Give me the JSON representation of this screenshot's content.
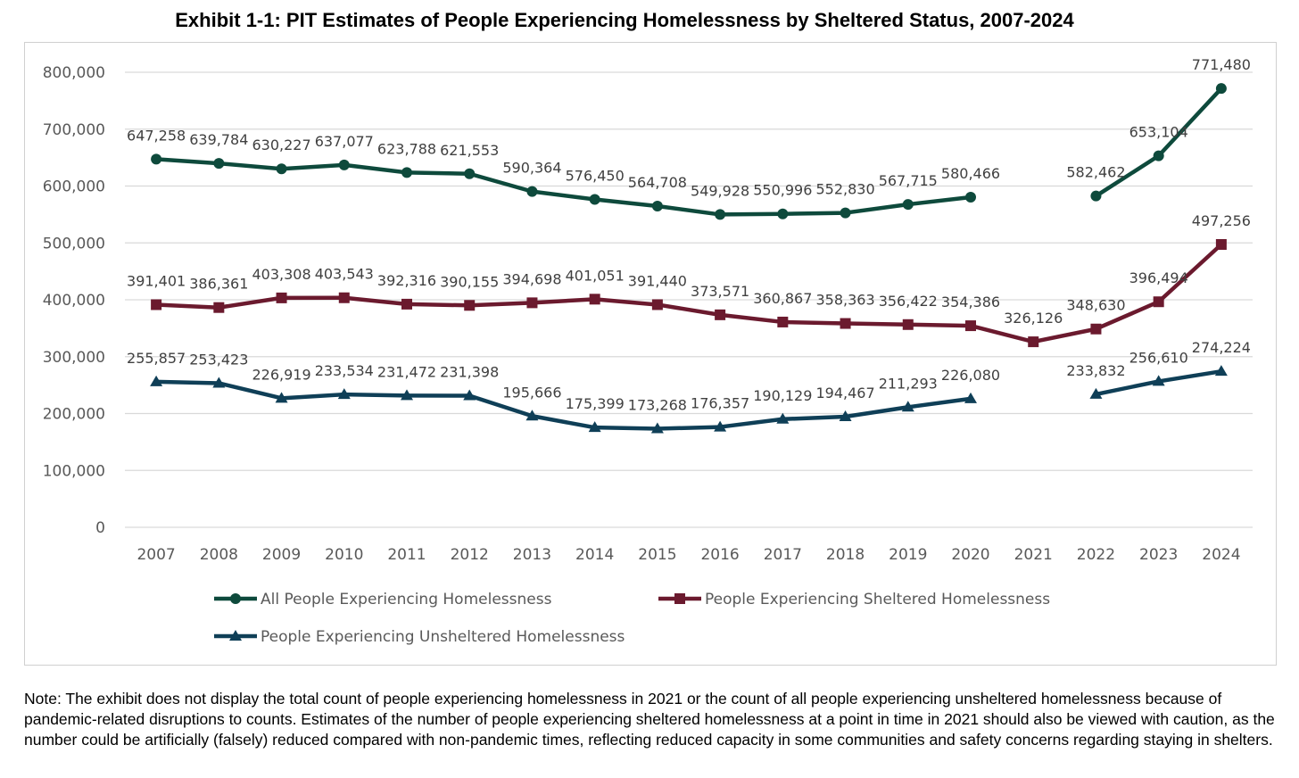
{
  "title": "Exhibit 1-1: PIT Estimates of People Experiencing Homelessness by Sheltered Status, 2007-2024",
  "note": "Note: The exhibit does not display the total count of people experiencing homelessness in 2021 or the count of all people experiencing unsheltered homelessness because of pandemic-related disruptions to counts. Estimates of the number of people experiencing sheltered homelessness at a point in time in 2021 should also be viewed with caution, as the number could be artificially (falsely) reduced compared with non-pandemic times, reflecting reduced capacity in some communities and safety concerns regarding staying in shelters.",
  "chart_data": {
    "type": "line",
    "x": [
      2007,
      2008,
      2009,
      2010,
      2011,
      2012,
      2013,
      2014,
      2015,
      2016,
      2017,
      2018,
      2019,
      2020,
      2021,
      2022,
      2023,
      2024
    ],
    "xticks": [
      "2007",
      "2008",
      "2009",
      "2010",
      "2011",
      "2012",
      "2013",
      "2014",
      "2015",
      "2016",
      "2017",
      "2018",
      "2019",
      "2020",
      "2021",
      "2022",
      "2023",
      "2024"
    ],
    "ylim": [
      0,
      800000
    ],
    "yticks": [
      "0",
      "100,000",
      "200,000",
      "300,000",
      "400,000",
      "500,000",
      "600,000",
      "700,000",
      "800,000"
    ],
    "grid": true,
    "legend_position": "bottom",
    "series": [
      {
        "name": "All People Experiencing Homelessness",
        "color": "#0e4a3c",
        "marker": "circle",
        "values": [
          647258,
          639784,
          630227,
          637077,
          623788,
          621553,
          590364,
          576450,
          564708,
          549928,
          550996,
          552830,
          567715,
          580466,
          null,
          582462,
          653104,
          771480
        ],
        "labels": [
          "647,258",
          "639,784",
          "630,227",
          "637,077",
          "623,788",
          "621,553",
          "590,364",
          "576,450",
          "564,708",
          "549,928",
          "550,996",
          "552,830",
          "567,715",
          "580,466",
          null,
          "582,462",
          "653,104",
          "771,480"
        ]
      },
      {
        "name": "People Experiencing Sheltered Homelessness",
        "color": "#6b1a2e",
        "marker": "square",
        "values": [
          391401,
          386361,
          403308,
          403543,
          392316,
          390155,
          394698,
          401051,
          391440,
          373571,
          360867,
          358363,
          356422,
          354386,
          326126,
          348630,
          396494,
          497256
        ],
        "labels": [
          "391,401",
          "386,361",
          "403,308",
          "403,543",
          "392,316",
          "390,155",
          "394,698",
          "401,051",
          "391,440",
          "373,571",
          "360,867",
          "358,363",
          "356,422",
          "354,386",
          "326,126",
          "348,630",
          "396,494",
          "497,256"
        ]
      },
      {
        "name": "People Experiencing Unsheltered Homelessness",
        "color": "#0f3f57",
        "marker": "triangle",
        "values": [
          255857,
          253423,
          226919,
          233534,
          231472,
          231398,
          195666,
          175399,
          173268,
          176357,
          190129,
          194467,
          211293,
          226080,
          null,
          233832,
          256610,
          274224
        ],
        "labels": [
          "255,857",
          "253,423",
          "226,919",
          "233,534",
          "231,472",
          "231,398",
          "195,666",
          "175,399",
          "173,268",
          "176,357",
          "190,129",
          "194,467",
          "211,293",
          "226,080",
          null,
          "233,832",
          "256,610",
          "274,224"
        ]
      }
    ]
  }
}
